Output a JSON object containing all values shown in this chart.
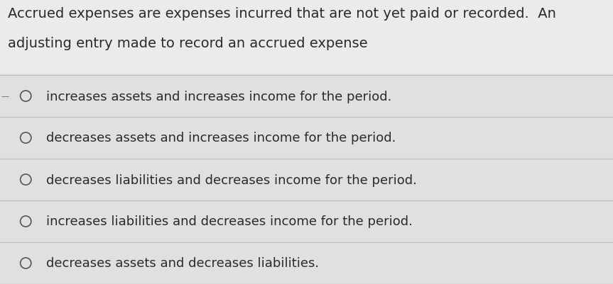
{
  "bg_color": "#ebebeb",
  "question_bg_color": "#ebebeb",
  "options_row_bg": "#e0e0e0",
  "text_color": "#2a2a2a",
  "circle_color": "#555555",
  "line_color": "#c0c0c0",
  "question_line1": "Accrued expenses are expenses incurred that are not yet paid or recorded.  An",
  "question_line2": "adjusting entry made to record an accrued expense",
  "options": [
    "increases assets and increases income for the period.",
    "decreases assets and increases income for the period.",
    "decreases liabilities and decreases income for the period.",
    "increases liabilities and decreases income for the period.",
    "decreases assets and decreases liabilities."
  ],
  "q_fontsize": 14.0,
  "opt_fontsize": 13.0,
  "fig_width": 8.63,
  "fig_height": 4.02,
  "dpi": 100
}
